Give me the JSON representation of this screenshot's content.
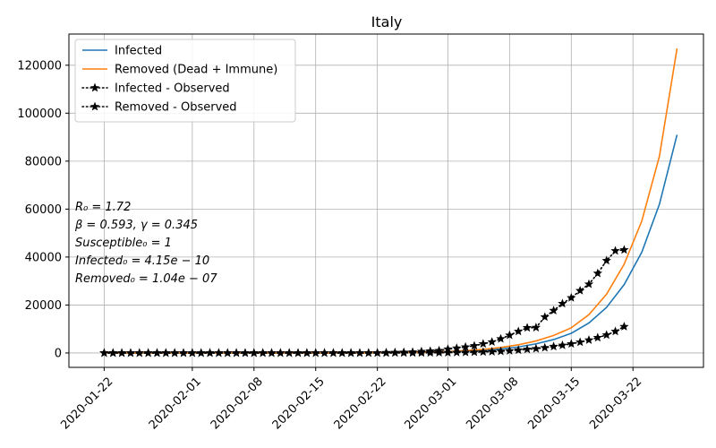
{
  "chart_data": {
    "type": "line",
    "title": "Italy",
    "xlabel": "",
    "ylabel": "",
    "x_start": "2020-01-22",
    "xlim": [
      "2020-01-18",
      "2020-03-30"
    ],
    "ylim": [
      -6000,
      133000
    ],
    "grid": true,
    "legend_position": "top-left",
    "x_ticks": [
      "2020-01-22",
      "2020-02-01",
      "2020-02-08",
      "2020-02-15",
      "2020-02-22",
      "2020-03-01",
      "2020-03-08",
      "2020-03-15",
      "2020-03-22"
    ],
    "y_ticks": [
      0,
      20000,
      40000,
      60000,
      80000,
      100000,
      120000
    ],
    "y_tick_labels": [
      "0",
      "20000",
      "40000",
      "60000",
      "80000",
      "100000",
      "120000"
    ],
    "annotation_lines": [
      "R₀ = 1.72",
      "β = 0.593, γ = 0.345",
      "Susceptible₀ = 1",
      "Infected₀ = 4.15e − 10",
      "Removed₀ = 1.04e − 07"
    ],
    "series": [
      {
        "name": "Infected",
        "style": "line",
        "color": "#1f77b4",
        "x": [
          "2020-01-22",
          "2020-01-25",
          "2020-01-28",
          "2020-01-31",
          "2020-02-03",
          "2020-02-06",
          "2020-02-09",
          "2020-02-12",
          "2020-02-15",
          "2020-02-18",
          "2020-02-21",
          "2020-02-24",
          "2020-02-27",
          "2020-03-01",
          "2020-03-03",
          "2020-03-05",
          "2020-03-07",
          "2020-03-09",
          "2020-03-11",
          "2020-03-13",
          "2020-03-15",
          "2020-03-17",
          "2020-03-19",
          "2020-03-21",
          "2020-03-23",
          "2020-03-25",
          "2020-03-27"
        ],
        "y": [
          0,
          0,
          0,
          0,
          0,
          0,
          0,
          0,
          0,
          0,
          20,
          60,
          150,
          400,
          700,
          1100,
          1700,
          2500,
          3800,
          5600,
          8200,
          12500,
          19000,
          28500,
          42000,
          62000,
          91000
        ]
      },
      {
        "name": "Removed (Dead + Immune)",
        "style": "line",
        "color": "#ff7f0e",
        "x": [
          "2020-01-22",
          "2020-01-25",
          "2020-01-28",
          "2020-01-31",
          "2020-02-03",
          "2020-02-06",
          "2020-02-09",
          "2020-02-12",
          "2020-02-15",
          "2020-02-18",
          "2020-02-21",
          "2020-02-24",
          "2020-02-27",
          "2020-03-01",
          "2020-03-03",
          "2020-03-05",
          "2020-03-07",
          "2020-03-09",
          "2020-03-11",
          "2020-03-13",
          "2020-03-15",
          "2020-03-17",
          "2020-03-19",
          "2020-03-21",
          "2020-03-23",
          "2020-03-25",
          "2020-03-27"
        ],
        "y": [
          0,
          0,
          0,
          0,
          0,
          0,
          0,
          0,
          0,
          0,
          30,
          90,
          250,
          600,
          1000,
          1500,
          2300,
          3400,
          5000,
          7300,
          10500,
          16000,
          24500,
          37000,
          55000,
          82000,
          127000
        ]
      },
      {
        "name": "Infected - Observed",
        "style": "dotted-star",
        "color": "#000000",
        "x": [
          "2020-01-22",
          "2020-01-23",
          "2020-01-24",
          "2020-01-25",
          "2020-01-26",
          "2020-01-27",
          "2020-01-28",
          "2020-01-29",
          "2020-01-30",
          "2020-01-31",
          "2020-02-01",
          "2020-02-02",
          "2020-02-03",
          "2020-02-04",
          "2020-02-05",
          "2020-02-06",
          "2020-02-07",
          "2020-02-08",
          "2020-02-09",
          "2020-02-10",
          "2020-02-11",
          "2020-02-12",
          "2020-02-13",
          "2020-02-14",
          "2020-02-15",
          "2020-02-16",
          "2020-02-17",
          "2020-02-18",
          "2020-02-19",
          "2020-02-20",
          "2020-02-21",
          "2020-02-22",
          "2020-02-23",
          "2020-02-24",
          "2020-02-25",
          "2020-02-26",
          "2020-02-27",
          "2020-02-28",
          "2020-02-29",
          "2020-03-01",
          "2020-03-02",
          "2020-03-03",
          "2020-03-04",
          "2020-03-05",
          "2020-03-06",
          "2020-03-07",
          "2020-03-08",
          "2020-03-09",
          "2020-03-10",
          "2020-03-11",
          "2020-03-12",
          "2020-03-13",
          "2020-03-14",
          "2020-03-15",
          "2020-03-16",
          "2020-03-17",
          "2020-03-18",
          "2020-03-19",
          "2020-03-20",
          "2020-03-21"
        ],
        "y": [
          0,
          0,
          0,
          0,
          0,
          0,
          0,
          0,
          0,
          0,
          0,
          0,
          0,
          0,
          0,
          0,
          0,
          0,
          0,
          0,
          0,
          0,
          0,
          0,
          0,
          0,
          0,
          0,
          0,
          0,
          20,
          60,
          150,
          220,
          310,
          380,
          630,
          800,
          1000,
          1600,
          2000,
          2500,
          3000,
          3800,
          4600,
          5900,
          7400,
          9000,
          10500,
          10600,
          15000,
          17700,
          20600,
          23000,
          26000,
          28700,
          33200,
          38500,
          42600,
          43000
        ]
      },
      {
        "name": "Removed - Observed",
        "style": "dotted-star",
        "color": "#000000",
        "x": [
          "2020-01-22",
          "2020-01-23",
          "2020-01-24",
          "2020-01-25",
          "2020-01-26",
          "2020-01-27",
          "2020-01-28",
          "2020-01-29",
          "2020-01-30",
          "2020-01-31",
          "2020-02-01",
          "2020-02-02",
          "2020-02-03",
          "2020-02-04",
          "2020-02-05",
          "2020-02-06",
          "2020-02-07",
          "2020-02-08",
          "2020-02-09",
          "2020-02-10",
          "2020-02-11",
          "2020-02-12",
          "2020-02-13",
          "2020-02-14",
          "2020-02-15",
          "2020-02-16",
          "2020-02-17",
          "2020-02-18",
          "2020-02-19",
          "2020-02-20",
          "2020-02-21",
          "2020-02-22",
          "2020-02-23",
          "2020-02-24",
          "2020-02-25",
          "2020-02-26",
          "2020-02-27",
          "2020-02-28",
          "2020-02-29",
          "2020-03-01",
          "2020-03-02",
          "2020-03-03",
          "2020-03-04",
          "2020-03-05",
          "2020-03-06",
          "2020-03-07",
          "2020-03-08",
          "2020-03-09",
          "2020-03-10",
          "2020-03-11",
          "2020-03-12",
          "2020-03-13",
          "2020-03-14",
          "2020-03-15",
          "2020-03-16",
          "2020-03-17",
          "2020-03-18",
          "2020-03-19",
          "2020-03-20",
          "2020-03-21"
        ],
        "y": [
          0,
          0,
          0,
          0,
          0,
          0,
          0,
          0,
          0,
          0,
          0,
          0,
          0,
          0,
          0,
          0,
          0,
          0,
          0,
          0,
          0,
          0,
          0,
          0,
          0,
          0,
          0,
          0,
          0,
          0,
          0,
          0,
          0,
          10,
          20,
          30,
          50,
          80,
          100,
          130,
          200,
          250,
          350,
          450,
          550,
          700,
          900,
          1200,
          1500,
          1800,
          2200,
          2700,
          3200,
          3800,
          4500,
          5400,
          6400,
          7500,
          9000,
          11000
        ]
      }
    ]
  }
}
